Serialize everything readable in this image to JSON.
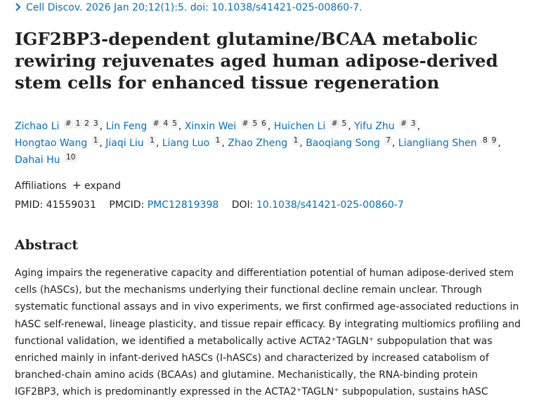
{
  "citation": {
    "text": "Cell Discov. 2026 Jan 20;12(1):5. doi: 10.1038/s41421-025-00860-7."
  },
  "title": {
    "lines": [
      "IGF2BP3-dependent glutamine/BCAA metabolic",
      "rewiring rejuvenates aged human adipose-derived",
      "stem cells for enhanced tissue regeneration"
    ]
  },
  "authors": [
    {
      "name": "Zichao Li",
      "sups": [
        "#",
        "1",
        "2",
        "3"
      ]
    },
    {
      "name": "Lin Feng",
      "sups": [
        "#",
        "4",
        "5"
      ]
    },
    {
      "name": "Xinxin Wei",
      "sups": [
        "#",
        "5",
        "6"
      ]
    },
    {
      "name": "Huichen Li",
      "sups": [
        "#",
        "5"
      ]
    },
    {
      "name": "Yifu Zhu",
      "sups": [
        "#",
        "3"
      ]
    },
    {
      "name": "Hongtao Wang",
      "sups": [
        "1"
      ]
    },
    {
      "name": "Jiaqi Liu",
      "sups": [
        "1"
      ]
    },
    {
      "name": "Liang Luo",
      "sups": [
        "1"
      ]
    },
    {
      "name": "Zhao Zheng",
      "sups": [
        "1"
      ]
    },
    {
      "name": "Baoqiang Song",
      "sups": [
        "7"
      ]
    },
    {
      "name": "Liangliang Shen",
      "sups": [
        "8",
        "9"
      ]
    },
    {
      "name": "Dahai Hu",
      "sups": [
        "10"
      ]
    }
  ],
  "affiliations": {
    "label": "Affiliations",
    "expand_label": "expand"
  },
  "ids": {
    "pmid_label": "PMID:",
    "pmid": "41559031",
    "pmcid_label": "PMCID:",
    "pmcid": "PMC12819398",
    "doi_label": "DOI:",
    "doi": "10.1038/s41421-025-00860-7"
  },
  "abstract": {
    "heading": "Abstract",
    "lines": [
      "Aging impairs the regenerative capacity and differentiation potential of human adipose-derived stem",
      "cells (hASCs), but the mechanisms underlying their functional decline remain unclear. Through",
      "systematic functional assays and in vivo experiments, we first confirmed age-associated reductions in",
      "hASC self-renewal, lineage plasticity, and tissue repair efficacy. By integrating multiomics profiling and",
      "functional validation, we identified a metabolically active ACTA2⁺TAGLN⁺ subpopulation that was",
      "enriched mainly in infant-derived hASCs (I-hASCs) and characterized by increased catabolism of",
      "branched-chain amino acids (BCAAs) and glutamine. Mechanistically, the RNA-binding protein",
      "IGF2BP3, which is predominantly expressed in the ACTA2⁺TAGLN⁺ subpopulation, sustains hASC"
    ]
  },
  "colors": {
    "link": "#0071bc",
    "text": "#212121"
  }
}
